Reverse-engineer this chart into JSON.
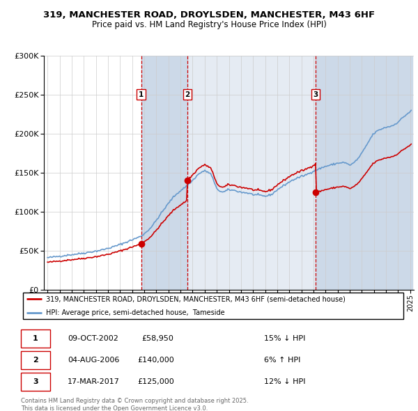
{
  "title": "319, MANCHESTER ROAD, DROYLSDEN, MANCHESTER, M43 6HF",
  "subtitle": "Price paid vs. HM Land Registry's House Price Index (HPI)",
  "legend_line1": "319, MANCHESTER ROAD, DROYLSDEN, MANCHESTER, M43 6HF (semi-detached house)",
  "legend_line2": "HPI: Average price, semi-detached house,  Tameside",
  "sale_label1": "1",
  "sale_date1": "09-OCT-2002",
  "sale_price1": 58950,
  "sale_pct1": "15% ↓ HPI",
  "sale_label2": "2",
  "sale_date2": "04-AUG-2006",
  "sale_price2": 140000,
  "sale_pct2": "6% ↑ HPI",
  "sale_label3": "3",
  "sale_date3": "17-MAR-2017",
  "sale_price3": 125000,
  "sale_pct3": "12% ↓ HPI",
  "footer": "Contains HM Land Registry data © Crown copyright and database right 2025.\nThis data is licensed under the Open Government Licence v3.0.",
  "hpi_color": "#6699cc",
  "sale_color": "#cc0000",
  "bg_color": "#dce6f1",
  "sale_marker_color": "#cc0000",
  "vline_color": "#cc0000",
  "span_color": "#ccd9e8",
  "ylim_max": 300000,
  "yticks": [
    0,
    50000,
    100000,
    150000,
    200000,
    250000,
    300000
  ],
  "hpi_anchors_x": [
    1995.0,
    1996.0,
    1997.0,
    1998.0,
    1999.0,
    2000.0,
    2001.0,
    2002.0,
    2002.75,
    2003.5,
    2004.5,
    2005.5,
    2006.5,
    2007.0,
    2007.5,
    2008.0,
    2008.5,
    2009.0,
    2009.5,
    2010.0,
    2010.5,
    2011.0,
    2011.5,
    2012.0,
    2012.5,
    2013.0,
    2013.5,
    2014.0,
    2014.5,
    2015.0,
    2015.5,
    2016.0,
    2016.5,
    2017.0,
    2017.5,
    2018.0,
    2018.5,
    2019.0,
    2019.5,
    2020.0,
    2020.5,
    2021.0,
    2021.5,
    2022.0,
    2022.5,
    2023.0,
    2023.5,
    2024.0,
    2024.5,
    2025.0
  ],
  "hpi_anchors_y": [
    41000,
    43000,
    45000,
    47000,
    49500,
    53000,
    58000,
    64000,
    69000,
    79000,
    100000,
    120000,
    133000,
    140000,
    148000,
    152000,
    148000,
    130000,
    125000,
    128000,
    127000,
    125000,
    124000,
    122000,
    121000,
    120000,
    122000,
    128000,
    133000,
    138000,
    142000,
    145000,
    148000,
    152000,
    155000,
    158000,
    160000,
    162000,
    163000,
    160000,
    165000,
    175000,
    188000,
    200000,
    205000,
    208000,
    210000,
    215000,
    222000,
    228000
  ],
  "sale_times": [
    2002.75,
    2006.58,
    2017.17
  ],
  "sale_prices": [
    58950,
    140000,
    125000
  ]
}
